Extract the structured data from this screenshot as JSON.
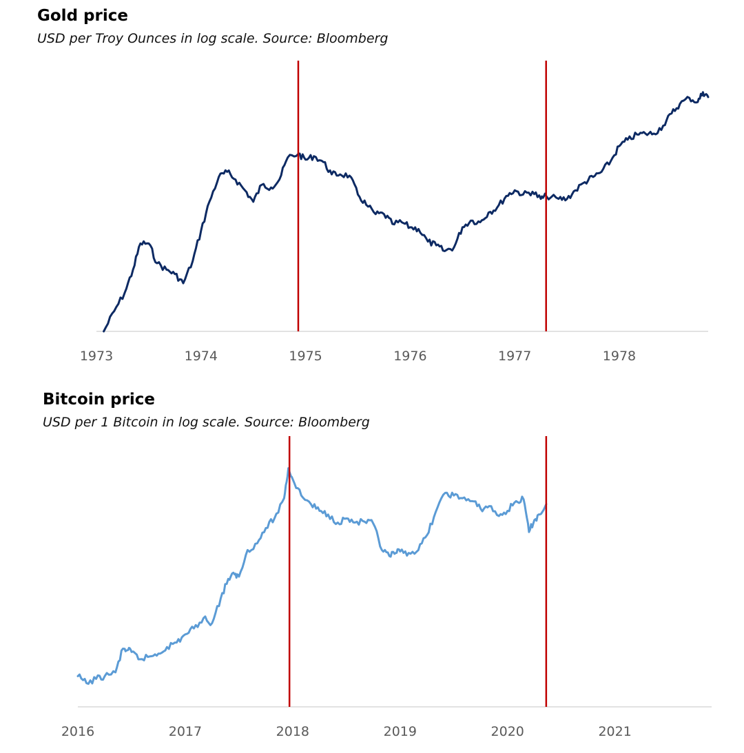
{
  "chart_data": [
    {
      "type": "line",
      "title": "Gold price",
      "subtitle": "USD per Troy Ounces in log scale. Source: Bloomberg",
      "y_scale": "log",
      "line_color": "#0d2a63",
      "marker_color": "#c00000",
      "x_ticks": [
        "1973",
        "1974",
        "1975",
        "1976",
        "1977",
        "1978"
      ],
      "xlim": [
        1973,
        1978.85
      ],
      "ylim": [
        58,
        265
      ],
      "markers": [
        1974.93,
        1977.3
      ],
      "series": [
        {
          "x": [
            1973.07,
            1973.17,
            1973.27,
            1973.35,
            1973.42,
            1973.5,
            1973.58,
            1973.67,
            1973.75,
            1973.83,
            1973.92,
            1974.0,
            1974.08,
            1974.17,
            1974.25,
            1974.33,
            1974.42,
            1974.5,
            1974.58,
            1974.67,
            1974.75,
            1974.83,
            1974.93,
            1975.0,
            1975.08,
            1975.17,
            1975.25,
            1975.33,
            1975.42,
            1975.5,
            1975.58,
            1975.67,
            1975.75,
            1975.83,
            1975.92,
            1976.0,
            1976.08,
            1976.17,
            1976.25,
            1976.33,
            1976.42,
            1976.5,
            1976.58,
            1976.67,
            1976.75,
            1976.83,
            1976.92,
            1977.0,
            1977.08,
            1977.17,
            1977.25,
            1977.3,
            1977.42,
            1977.5,
            1977.58,
            1977.67,
            1977.75,
            1977.83,
            1977.92,
            1978.0,
            1978.08,
            1978.17,
            1978.25,
            1978.33,
            1978.42,
            1978.5,
            1978.58,
            1978.67,
            1978.75,
            1978.8,
            1978.85
          ],
          "values": [
            58,
            65,
            72,
            82,
            95,
            95,
            85,
            82,
            80,
            76,
            86,
            102,
            120,
            138,
            142,
            136,
            128,
            120,
            132,
            130,
            136,
            154,
            157,
            152,
            155,
            150,
            140,
            140,
            139,
            125,
            118,
            112,
            112,
            106,
            107,
            104,
            103,
            96,
            94,
            91,
            93,
            104,
            108,
            107,
            113,
            116,
            124,
            128,
            125,
            127,
            122,
            124,
            122,
            122,
            128,
            134,
            138,
            142,
            151,
            164,
            170,
            175,
            176,
            176,
            184,
            197,
            208,
            215,
            210,
            222,
            216
          ]
        }
      ]
    },
    {
      "type": "line",
      "title": "Bitcoin price",
      "subtitle": "USD per 1 Bitcoin in log scale. Source: Bloomberg",
      "y_scale": "log",
      "line_color": "#5b9bd5",
      "marker_color": "#c00000",
      "x_ticks": [
        "2016",
        "2017",
        "2018",
        "2019",
        "2020",
        "2021"
      ],
      "xlim": [
        2016,
        2021.9
      ],
      "ylim": [
        250,
        30000
      ],
      "markers": [
        2017.97,
        2020.36
      ],
      "series": [
        {
          "x": [
            2016.0,
            2016.08,
            2016.17,
            2016.25,
            2016.35,
            2016.42,
            2016.46,
            2016.5,
            2016.58,
            2016.67,
            2016.75,
            2016.83,
            2016.92,
            2017.0,
            2017.08,
            2017.17,
            2017.25,
            2017.33,
            2017.4,
            2017.46,
            2017.5,
            2017.58,
            2017.67,
            2017.75,
            2017.83,
            2017.92,
            2017.96,
            2018.0,
            2018.08,
            2018.17,
            2018.25,
            2018.33,
            2018.42,
            2018.5,
            2018.58,
            2018.67,
            2018.75,
            2018.83,
            2018.9,
            2018.96,
            2019.0,
            2019.08,
            2019.17,
            2019.25,
            2019.33,
            2019.42,
            2019.5,
            2019.58,
            2019.67,
            2019.75,
            2019.83,
            2019.92,
            2020.0,
            2020.08,
            2020.15,
            2020.2,
            2020.25,
            2020.3,
            2020.36
          ],
          "values": [
            430,
            380,
            410,
            430,
            460,
            700,
            680,
            660,
            580,
            610,
            640,
            720,
            780,
            900,
            1000,
            1200,
            1100,
            1700,
            2400,
            2600,
            2500,
            4000,
            4500,
            5900,
            7000,
            10000,
            17000,
            14000,
            10500,
            9000,
            8000,
            7500,
            6500,
            7000,
            6500,
            6600,
            6400,
            4000,
            3600,
            3800,
            3900,
            3800,
            4000,
            5200,
            7800,
            11000,
            10500,
            10000,
            9500,
            8300,
            8700,
            7300,
            8000,
            9500,
            9800,
            5500,
            6800,
            7500,
            9000
          ]
        }
      ]
    }
  ]
}
